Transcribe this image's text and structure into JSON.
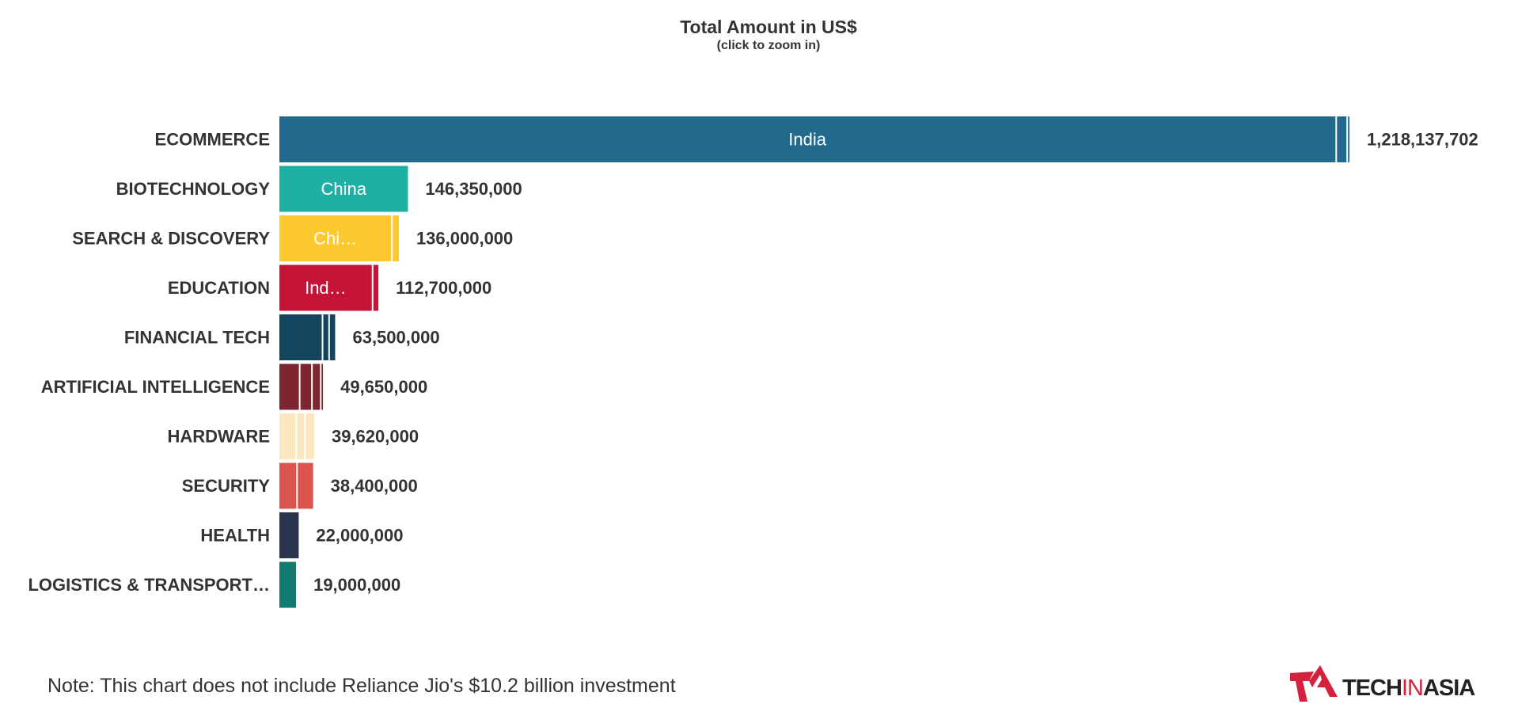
{
  "header": {
    "title": "Total Amount in US$",
    "subtitle": "(click to zoom in)"
  },
  "chart_data": {
    "type": "bar",
    "orientation": "horizontal",
    "stacked": true,
    "title": "Total Amount in US$",
    "subtitle": "(click to zoom in)",
    "xlabel": "",
    "ylabel": "",
    "grid": false,
    "categories": [
      "ECOMMERCE",
      "BIOTECHNOLOGY",
      "SEARCH & DISCOVERY",
      "EDUCATION",
      "FINANCIAL TECH",
      "ARTIFICIAL INTELLIGENCE",
      "HARDWARE",
      "SECURITY",
      "HEALTH",
      "LOGISTICS & TRANSPORT…"
    ],
    "totals": [
      "1,218,137,702",
      "146,350,000",
      "136,000,000",
      "112,700,000",
      "63,500,000",
      "49,650,000",
      "39,620,000",
      "38,400,000",
      "22,000,000",
      "19,000,000"
    ],
    "total_values": [
      1218137702,
      146350000,
      136000000,
      112700000,
      63500000,
      49650000,
      39620000,
      38400000,
      22000000,
      19000000
    ],
    "colors": [
      "#21698d",
      "#1fb0a4",
      "#fec92f",
      "#c41334",
      "#13465e",
      "#7e2532",
      "#fde7bf",
      "#dc544e",
      "#2a3450",
      "#117b6f"
    ],
    "rows": [
      {
        "segments": [
          {
            "value": 1204000000,
            "label": "India"
          },
          {
            "value": 12500000,
            "label": ""
          },
          {
            "value": 1637702,
            "label": ""
          }
        ]
      },
      {
        "segments": [
          {
            "value": 146350000,
            "label": "China"
          }
        ]
      },
      {
        "segments": [
          {
            "value": 129000000,
            "label": "Chi…"
          },
          {
            "value": 7000000,
            "label": ""
          }
        ]
      },
      {
        "segments": [
          {
            "value": 107000000,
            "label": "Ind…"
          },
          {
            "value": 5700000,
            "label": ""
          }
        ]
      },
      {
        "segments": [
          {
            "value": 50000000,
            "label": ""
          },
          {
            "value": 7500000,
            "label": ""
          },
          {
            "value": 6000000,
            "label": ""
          }
        ]
      },
      {
        "segments": [
          {
            "value": 24000000,
            "label": ""
          },
          {
            "value": 14000000,
            "label": ""
          },
          {
            "value": 10000000,
            "label": ""
          },
          {
            "value": 1650000,
            "label": ""
          }
        ]
      },
      {
        "segments": [
          {
            "value": 20000000,
            "label": ""
          },
          {
            "value": 10000000,
            "label": ""
          },
          {
            "value": 9620000,
            "label": ""
          }
        ]
      },
      {
        "segments": [
          {
            "value": 21000000,
            "label": ""
          },
          {
            "value": 17400000,
            "label": ""
          }
        ]
      },
      {
        "segments": [
          {
            "value": 22000000,
            "label": ""
          }
        ]
      },
      {
        "segments": [
          {
            "value": 19000000,
            "label": ""
          }
        ]
      }
    ]
  },
  "footer": {
    "note": "Note: This chart does not include Reliance Jio's $10.2 billion investment",
    "logo_text_tech": "TECH",
    "logo_text_in": "IN",
    "logo_text_asia": "ASIA",
    "logo_color_red": "#d4213d",
    "logo_color_dark": "#222222"
  }
}
